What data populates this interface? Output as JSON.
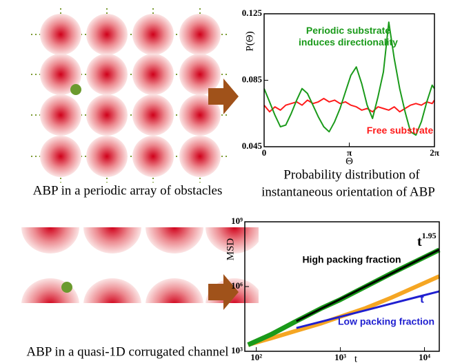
{
  "diagrams": [
    {
      "caption": "ABP in a periodic array of obstacles"
    },
    {
      "caption": "ABP in a quasi-1D corrugated channel"
    }
  ],
  "chart_data": [
    {
      "type": "line",
      "xlabel": "Θ",
      "ylabel": "P(Θ)",
      "caption": [
        "Probability distribution of",
        "instantaneous orientation of ABP"
      ],
      "xlim": [
        0,
        6.28318
      ],
      "ylim": [
        0.045,
        0.125
      ],
      "xticks": [
        0,
        {
          "value": 3.14159,
          "label": "π"
        },
        {
          "value": 6.28318,
          "label": "2π"
        }
      ],
      "yticks": [
        0.045,
        0.085,
        0.125
      ],
      "x": [
        0,
        0.2,
        0.4,
        0.6,
        0.8,
        1.0,
        1.2,
        1.4,
        1.6,
        1.8,
        2.0,
        2.2,
        2.4,
        2.6,
        2.8,
        3.0,
        3.2,
        3.4,
        3.6,
        3.8,
        4.0,
        4.2,
        4.4,
        4.6,
        4.8,
        5.0,
        5.2,
        5.4,
        5.6,
        5.8,
        6.0,
        6.2,
        6.28
      ],
      "series": [
        {
          "color": "#ff1a1a",
          "values": [
            0.07,
            0.066,
            0.069,
            0.067,
            0.07,
            0.071,
            0.072,
            0.07,
            0.073,
            0.071,
            0.072,
            0.074,
            0.072,
            0.073,
            0.071,
            0.072,
            0.07,
            0.069,
            0.067,
            0.068,
            0.066,
            0.069,
            0.068,
            0.067,
            0.069,
            0.066,
            0.068,
            0.07,
            0.071,
            0.07,
            0.072,
            0.071,
            0.073
          ]
        },
        {
          "color": "#1a9a1a",
          "values": [
            0.08,
            0.072,
            0.064,
            0.057,
            0.058,
            0.065,
            0.073,
            0.08,
            0.077,
            0.07,
            0.063,
            0.057,
            0.054,
            0.06,
            0.068,
            0.078,
            0.088,
            0.093,
            0.083,
            0.07,
            0.062,
            0.075,
            0.09,
            0.12,
            0.098,
            0.08,
            0.066,
            0.054,
            0.052,
            0.06,
            0.072,
            0.082,
            0.08
          ]
        }
      ],
      "annotations": [
        {
          "text": "Periodic substrate",
          "color": "#1a9a1a"
        },
        {
          "text": "induces directionality",
          "color": "#1a9a1a"
        },
        {
          "text": "Free substrate",
          "color": "#ff1a1a"
        }
      ]
    },
    {
      "type": "line",
      "xlabel": "t",
      "ylabel": "MSD",
      "log_x": true,
      "log_y": true,
      "xlim": [
        73,
        15000
      ],
      "ylim": [
        1000,
        1000000000
      ],
      "xticks": [
        {
          "value": 100,
          "label": "10²"
        },
        {
          "value": 1000,
          "label": "10³"
        },
        {
          "value": 10000,
          "label": "10⁴"
        }
      ],
      "yticks": [
        {
          "value": 1000,
          "label": "10³"
        },
        {
          "value": 1000000,
          "label": "10⁶"
        },
        {
          "value": 1000000000,
          "label": "10⁹"
        }
      ],
      "x": [
        80,
        150,
        300,
        600,
        1000,
        2000,
        4000,
        8000,
        15000
      ],
      "series": [
        {
          "name": "Low packing fraction",
          "color": "#f5a623",
          "label_color": "#1f1fd0",
          "values": [
            2000,
            4000,
            9000,
            20000,
            40000,
            100000,
            300000,
            1000000,
            3000000
          ]
        },
        {
          "name": "High packing fraction",
          "color": "#1a9a1a",
          "label_color": "#000000",
          "values": [
            2000,
            6000,
            25000,
            100000,
            250000,
            1000000,
            4000000,
            15000000,
            50000000
          ]
        },
        {
          "color": "#000000",
          "values": [
            null,
            null,
            25000,
            97000,
            261000,
            1020000,
            3900000,
            15200000,
            51400000
          ]
        },
        {
          "name": "t",
          "color": "#1f1fd0",
          "label_color": "#1f1fd0",
          "values": [
            null,
            null,
            12000,
            24000,
            40000,
            80000,
            160000,
            320000,
            600000
          ]
        }
      ],
      "annotations": [
        {
          "text": "t",
          "superscript": "1.95",
          "color": "#000000"
        }
      ]
    }
  ]
}
